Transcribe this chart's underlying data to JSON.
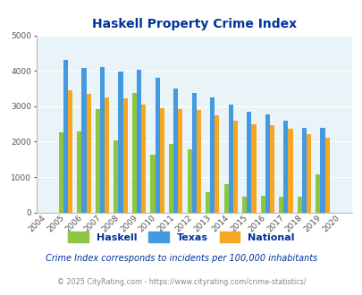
{
  "title": "Haskell Property Crime Index",
  "years": [
    2004,
    2005,
    2006,
    2007,
    2008,
    2009,
    2010,
    2011,
    2012,
    2013,
    2014,
    2015,
    2016,
    2017,
    2018,
    2019,
    2020
  ],
  "haskell": [
    0,
    2270,
    2290,
    2920,
    2030,
    3370,
    1620,
    1940,
    1790,
    560,
    790,
    450,
    480,
    450,
    450,
    1070,
    0
  ],
  "texas": [
    0,
    4300,
    4080,
    4100,
    3990,
    4020,
    3800,
    3490,
    3370,
    3260,
    3050,
    2840,
    2780,
    2590,
    2400,
    2400,
    0
  ],
  "national": [
    0,
    3440,
    3340,
    3250,
    3210,
    3040,
    2940,
    2920,
    2890,
    2750,
    2600,
    2490,
    2460,
    2360,
    2200,
    2120,
    0
  ],
  "haskell_color": "#8dc63f",
  "texas_color": "#4499e0",
  "national_color": "#f5a623",
  "bg_color": "#e8f4f8",
  "title_color": "#003399",
  "footnote1_color": "#003399",
  "footnote2_color": "#888888",
  "grid_color": "#ffffff",
  "ylim": [
    0,
    5000
  ],
  "yticks": [
    0,
    1000,
    2000,
    3000,
    4000,
    5000
  ],
  "footnote1": "Crime Index corresponds to incidents per 100,000 inhabitants",
  "footnote2": "© 2025 CityRating.com - https://www.cityrating.com/crime-statistics/",
  "bar_width": 0.25
}
